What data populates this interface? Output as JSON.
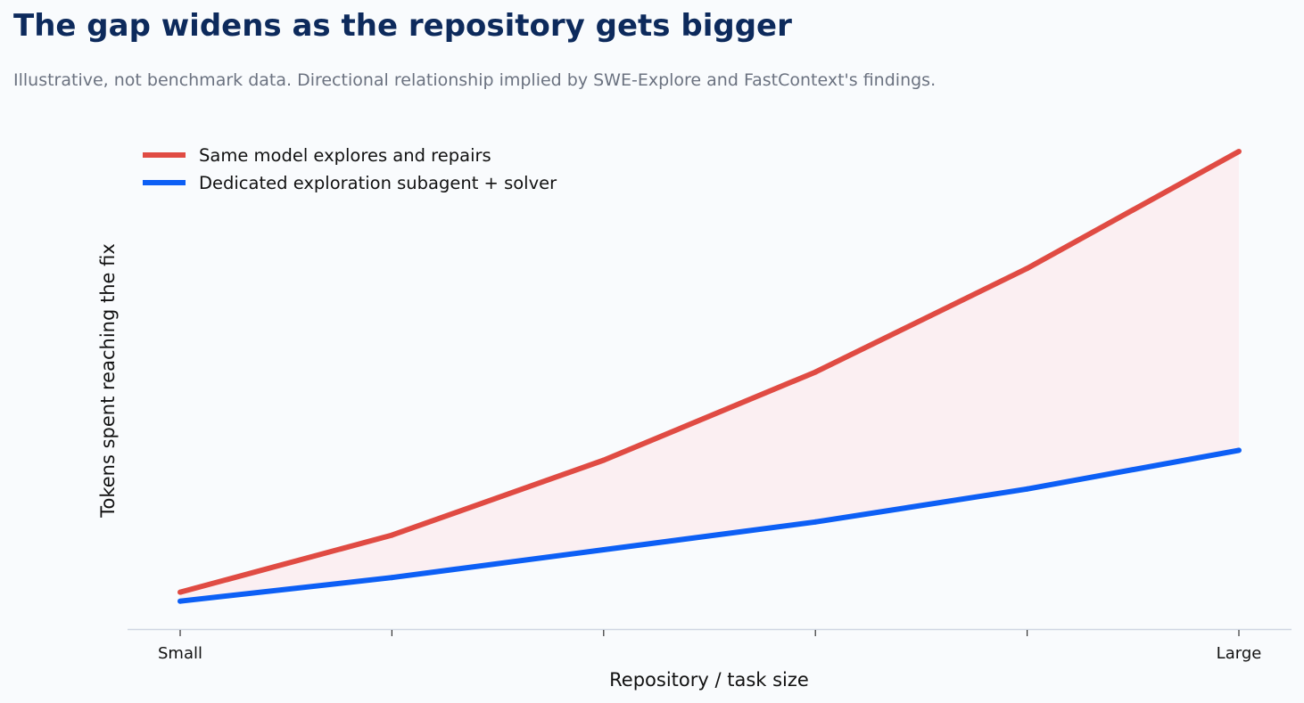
{
  "header": {
    "title": "The gap widens as the repository gets bigger",
    "subtitle": "Illustrative, not benchmark data. Directional relationship implied by SWE-Explore and FastContext's findings."
  },
  "chart_data": {
    "type": "line",
    "title": "The gap widens as the repository gets bigger",
    "subtitle": "Illustrative, not benchmark data. Directional relationship implied by SWE-Explore and FastContext's findings.",
    "xlabel": "Repository / task size",
    "ylabel": "Tokens spent reaching the fix",
    "x": [
      1,
      2,
      3,
      4,
      5,
      6
    ],
    "x_tick_labels": [
      "Small",
      "",
      "",
      "",
      "",
      "Large"
    ],
    "ylim": [
      0,
      100
    ],
    "y_ticks_shown": false,
    "grid": false,
    "legend_position": "top-left",
    "series": [
      {
        "name": "Same model explores and repairs",
        "color": "#e04b43",
        "values": [
          6.5,
          18.6,
          34.5,
          53.2,
          75.2,
          100
        ]
      },
      {
        "name": "Dedicated exploration subagent + solver",
        "color": "#0d5ff5",
        "values": [
          4.6,
          9.6,
          15.5,
          21.4,
          28.4,
          36.6
        ]
      }
    ],
    "fill_between": {
      "color": "#fbecef",
      "series": [
        0,
        1
      ]
    }
  }
}
